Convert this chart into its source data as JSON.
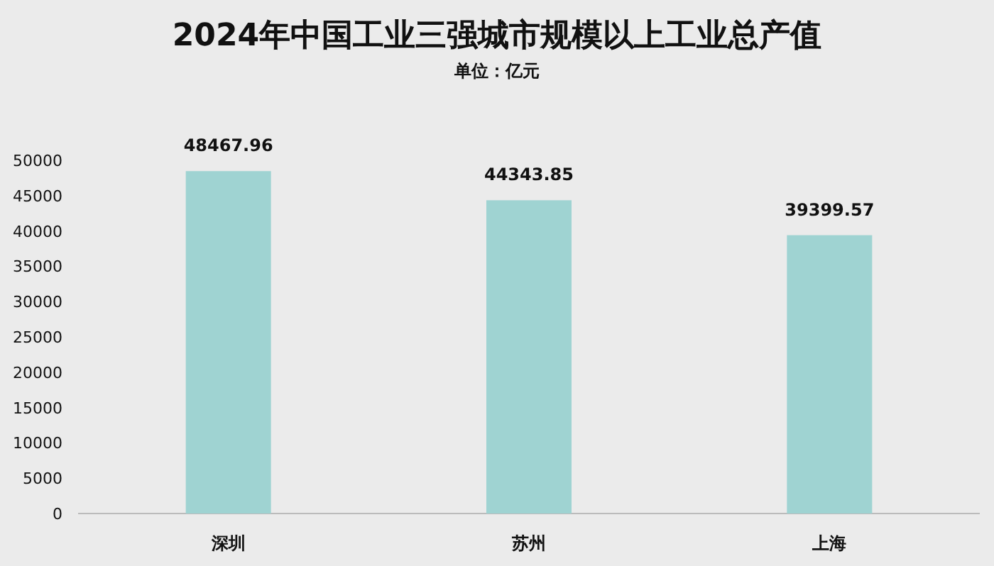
{
  "chart_data": {
    "type": "bar",
    "title": "2024年中国工业三强城市规模以上工业总产值",
    "subtitle": "单位：亿元",
    "categories": [
      "深圳",
      "苏州",
      "上海"
    ],
    "values": [
      48467.96,
      44343.85,
      39399.57
    ],
    "color": "#9fd3d2",
    "ylim": [
      0,
      50000
    ],
    "yticks": [
      0,
      5000,
      10000,
      15000,
      20000,
      25000,
      30000,
      35000,
      40000,
      45000,
      50000
    ],
    "data_labels": true
  }
}
